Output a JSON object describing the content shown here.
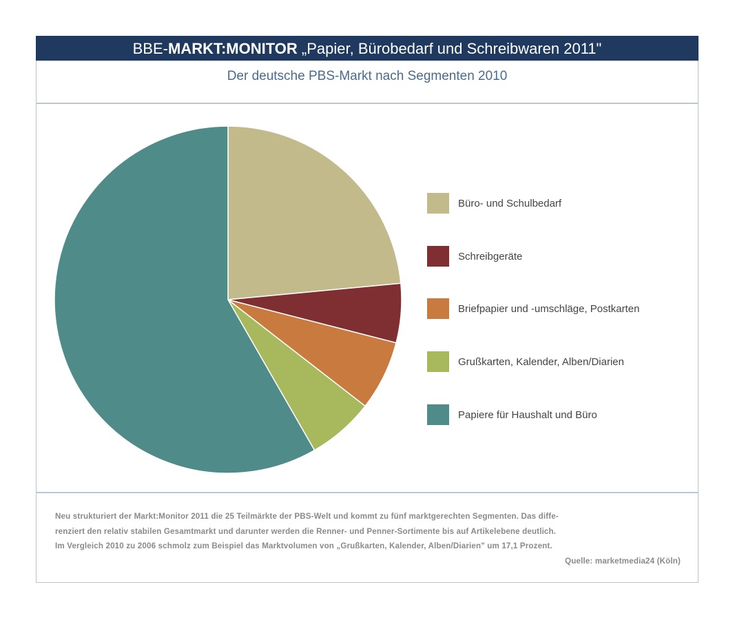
{
  "header": {
    "brand_prefix": "BBE-",
    "brand_bold": "MARKT:MONITOR",
    "title_rest": " „Papier, Bürobedarf und Schreibwaren 2011\""
  },
  "chart_data": {
    "type": "pie",
    "title": "Der deutsche PBS-Markt nach Segmenten 2010",
    "start": "12 o'clock, clockwise",
    "legend_position": "right",
    "slices": [
      {
        "label": "Büro- und Schulbedarf",
        "value": 23.5,
        "color": "#c3ba8c"
      },
      {
        "label": "Schreibgeräte",
        "value": 5.5,
        "color": "#7f2f31"
      },
      {
        "label": "Briefpapier und -umschläge, Postkarten",
        "value": 6.5,
        "color": "#c97a3e"
      },
      {
        "label": "Grußkarten, Kalender, Alben/Diarien",
        "value": 6.2,
        "color": "#a7b95c"
      },
      {
        "label": "Papiere für Haushalt und Büro",
        "value": 58.3,
        "color": "#4f8b89"
      }
    ]
  },
  "footer": {
    "lines": [
      "Neu strukturiert der Markt:Monitor 2011 die 25 Teilmärkte der PBS-Welt und kommt zu fünf marktgerechten Segmenten. Das diffe-",
      "renziert den relativ stabilen Gesamtmarkt und darunter werden die Renner- und Penner-Sortimente bis auf Artikelebene deutlich.",
      "Im Vergleich 2010 zu 2006 schmolz zum Beispiel das Marktvolumen von „Grußkarten, Kalender, Alben/Diarien\" um 17,1 Prozent."
    ],
    "source": "Quelle: marketmedia24 (Köln)"
  }
}
